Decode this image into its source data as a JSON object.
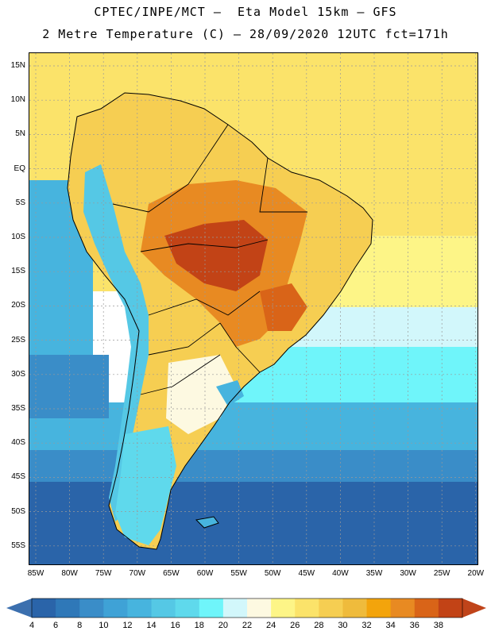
{
  "header": {
    "line1": "CPTEC/INPE/MCT –  Eta Model 15km – GFS",
    "line2": "2 Metre Temperature (C) – 28/09/2020 12UTC fct=171h"
  },
  "axes": {
    "lat_labels": [
      "15N",
      "10N",
      "5N",
      "EQ",
      "5S",
      "10S",
      "15S",
      "20S",
      "25S",
      "30S",
      "35S",
      "40S",
      "45S",
      "50S",
      "55S"
    ],
    "lon_labels": [
      "85W",
      "80W",
      "75W",
      "70W",
      "65W",
      "60W",
      "55W",
      "50W",
      "45W",
      "40W",
      "35W",
      "30W",
      "25W",
      "20W"
    ]
  },
  "colorbar": {
    "labels": [
      "4",
      "6",
      "8",
      "10",
      "12",
      "14",
      "16",
      "18",
      "20",
      "22",
      "24",
      "26",
      "28",
      "30",
      "32",
      "34",
      "36",
      "38"
    ],
    "colors": [
      "#2a64a9",
      "#2f78b8",
      "#3a8dc8",
      "#3fa2d6",
      "#47b4de",
      "#55c8e5",
      "#5fd9ec",
      "#6ff5fa",
      "#d2f7fb",
      "#fdf9e1",
      "#fdf587",
      "#fbe36a",
      "#f6ce52",
      "#efbb3c",
      "#f3a40c",
      "#e88a22",
      "#d96418",
      "#c24316"
    ],
    "low_arrow_color": "#3b6fae",
    "high_arrow_color": "#c0441a"
  },
  "map_colors": {
    "ocean_deep": "#2a64a9",
    "ocean_mid": "#3a8dc8",
    "ocean_light": "#47b4de",
    "ocean_cyan": "#6ff5fa",
    "ocean_pale": "#d2f7fb",
    "tropic_sea": "#fbe36a",
    "tropic_sea_far": "#fdf587",
    "land_warm": "#f6ce52",
    "land_hot": "#e88a22",
    "land_hotter": "#d96418",
    "land_hottest": "#c24316",
    "andes": "#55c8e5",
    "andes_cold": "#3fa2d6",
    "south_land": "#5fd9ec",
    "pampa": "#fdf9e1",
    "outline": "#000000"
  }
}
